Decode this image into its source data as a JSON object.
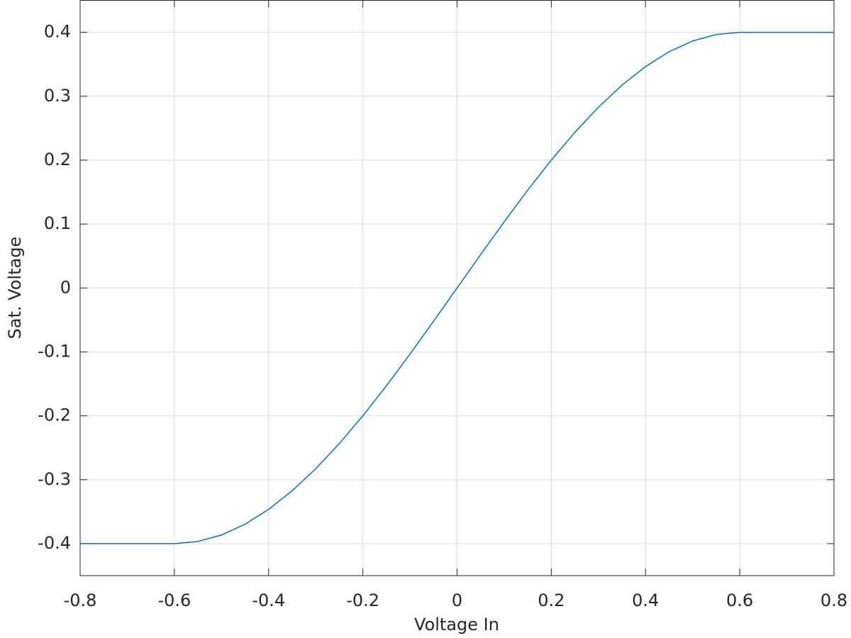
{
  "chart_data": {
    "type": "line",
    "x_label": "Voltage In",
    "y_label": "Sat. Voltage",
    "x": [
      -0.8,
      -0.75,
      -0.7,
      -0.65,
      -0.6,
      -0.55,
      -0.5,
      -0.45,
      -0.4,
      -0.35,
      -0.3,
      -0.25,
      -0.2,
      -0.15,
      -0.1,
      -0.05,
      0,
      0.05,
      0.1,
      0.15,
      0.2,
      0.25,
      0.3,
      0.35,
      0.4,
      0.45,
      0.5,
      0.55,
      0.6,
      0.65,
      0.7,
      0.75,
      0.8
    ],
    "series": [
      {
        "color": "#0072bd",
        "values": [
          -0.4,
          -0.4,
          -0.4,
          -0.4,
          -0.4,
          -0.3966,
          -0.3864,
          -0.3696,
          -0.3464,
          -0.3173,
          -0.2828,
          -0.2435,
          -0.2,
          -0.1531,
          -0.1035,
          -0.0522,
          0,
          0.0522,
          0.1035,
          0.1531,
          0.2,
          0.2435,
          0.2828,
          0.3173,
          0.3464,
          0.3696,
          0.3864,
          0.3966,
          0.4,
          0.4,
          0.4,
          0.4,
          0.4
        ]
      }
    ],
    "xlim": [
      -0.8,
      0.8
    ],
    "xticks": [
      -0.8,
      -0.6,
      -0.4,
      -0.2,
      0,
      0.2,
      0.4,
      0.6,
      0.8
    ],
    "ylim": [
      -0.45,
      0.45
    ],
    "yticks": [
      -0.4,
      -0.3,
      -0.2,
      -0.1,
      0,
      0.1,
      0.2,
      0.3,
      0.4
    ],
    "grid": true
  }
}
